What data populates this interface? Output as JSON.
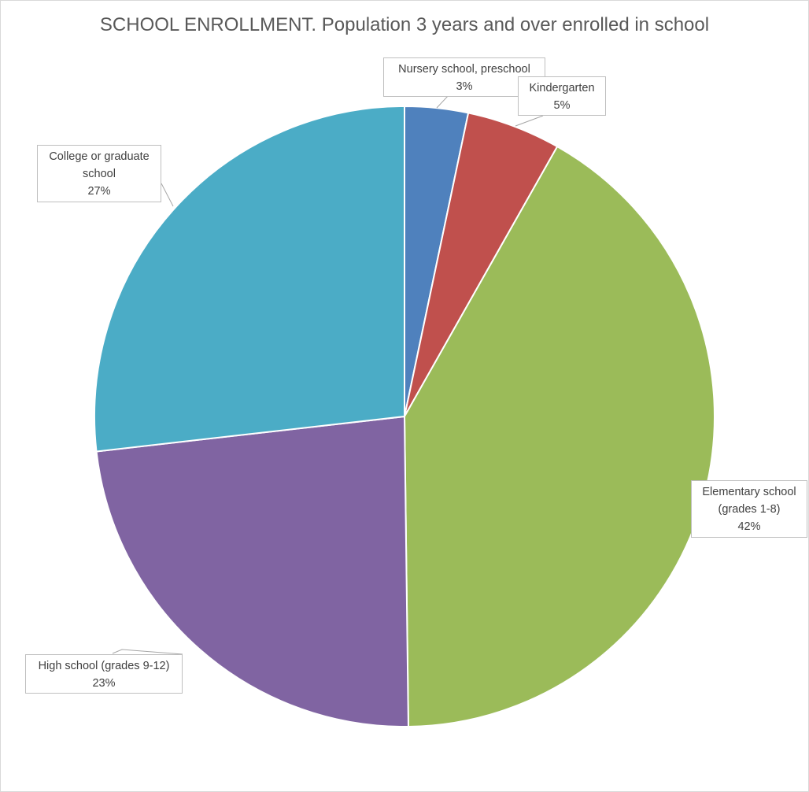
{
  "chart_data": {
    "type": "pie",
    "title": "SCHOOL ENROLLMENT. Population 3 years and over enrolled in school",
    "start_angle_deg": 0,
    "direction": "clockwise",
    "slices": [
      {
        "label": "Nursery school, preschool",
        "value": 3.3,
        "percent_label": "3%",
        "color": "#4f81bd"
      },
      {
        "label": "Kindergarten",
        "value": 4.9,
        "percent_label": "5%",
        "color": "#c0504d"
      },
      {
        "label": "Elementary school (grades 1-8)",
        "value": 41.6,
        "percent_label": "42%",
        "color": "#9bbb59"
      },
      {
        "label": "High school (grades 9-12)",
        "value": 23.4,
        "percent_label": "23%",
        "color": "#8064a2"
      },
      {
        "label": "College or graduate school",
        "value": 26.8,
        "percent_label": "27%",
        "color": "#4bacc6"
      }
    ],
    "legend": false
  },
  "labels": {
    "nursery": {
      "line1": "Nursery school, preschool",
      "line2": "3%"
    },
    "kindergarten": {
      "line1": "Kindergarten",
      "line2": "5%"
    },
    "elementary": {
      "line1": "Elementary school",
      "line2": "(grades 1-8)",
      "line3": "42%"
    },
    "high": {
      "line1": "High school (grades 9-12)",
      "line2": "23%"
    },
    "college": {
      "line1": "College or graduate",
      "line2": "school",
      "line3": "27%"
    }
  }
}
